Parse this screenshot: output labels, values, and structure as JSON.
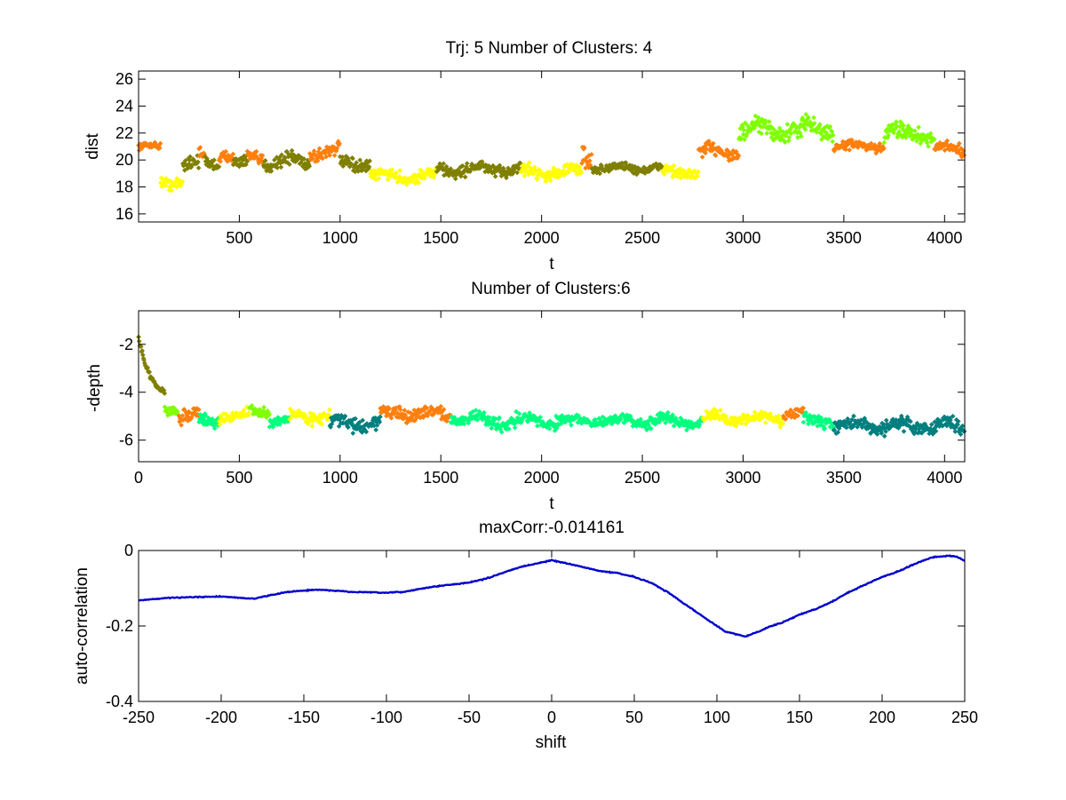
{
  "colors": {
    "orange": "#ff7f0e",
    "olive": "#7f7f00",
    "yellow": "#ffff00",
    "lime": "#7fff00",
    "teal": "#007f7f",
    "mint": "#00ff7f",
    "line": "#0000cc"
  },
  "chart_data": [
    {
      "type": "scatter",
      "title": "Trj: 5 Number of Clusters: 4",
      "xlabel": "t",
      "ylabel": "dist",
      "xlim": [
        0,
        4100
      ],
      "ylim": [
        15.4,
        26.6
      ],
      "xticks": [
        500,
        1000,
        1500,
        2000,
        2500,
        3000,
        3500,
        4000
      ],
      "yticks": [
        16,
        18,
        20,
        22,
        24,
        26
      ],
      "clusters": [
        {
          "name": "cluster 1",
          "color": "#ff7f0e"
        },
        {
          "name": "cluster 2",
          "color": "#7f7f00"
        },
        {
          "name": "cluster 3",
          "color": "#ffff00"
        },
        {
          "name": "cluster 4",
          "color": "#7fff00"
        }
      ],
      "segments": [
        {
          "t": [
            0,
            110
          ],
          "cluster": 0,
          "base": 21.0,
          "noise": 0.2
        },
        {
          "t": [
            110,
            220
          ],
          "cluster": 2,
          "base": 18.4,
          "noise": 0.4
        },
        {
          "t": [
            220,
            300
          ],
          "cluster": 1,
          "base": 19.7,
          "noise": 0.5
        },
        {
          "t": [
            300,
            330
          ],
          "cluster": 0,
          "base": 20.2,
          "noise": 0.4
        },
        {
          "t": [
            330,
            400
          ],
          "cluster": 1,
          "base": 19.8,
          "noise": 0.4
        },
        {
          "t": [
            400,
            470
          ],
          "cluster": 0,
          "base": 20.4,
          "noise": 0.4
        },
        {
          "t": [
            470,
            540
          ],
          "cluster": 1,
          "base": 19.7,
          "noise": 0.4
        },
        {
          "t": [
            540,
            620
          ],
          "cluster": 0,
          "base": 20.1,
          "noise": 0.4
        },
        {
          "t": [
            620,
            850
          ],
          "cluster": 1,
          "base": 19.9,
          "noise": 0.5
        },
        {
          "t": [
            850,
            1000
          ],
          "cluster": 0,
          "base": 20.6,
          "noise": 0.5
        },
        {
          "t": [
            1000,
            1150
          ],
          "cluster": 1,
          "base": 19.7,
          "noise": 0.4
        },
        {
          "t": [
            1150,
            1480
          ],
          "cluster": 2,
          "base": 18.8,
          "noise": 0.4
        },
        {
          "t": [
            1480,
            1900
          ],
          "cluster": 1,
          "base": 19.3,
          "noise": 0.4
        },
        {
          "t": [
            1900,
            2200
          ],
          "cluster": 2,
          "base": 19.1,
          "noise": 0.4
        },
        {
          "t": [
            2200,
            2250
          ],
          "cluster": 0,
          "base": 20.3,
          "noise": 0.8
        },
        {
          "t": [
            2250,
            2600
          ],
          "cluster": 1,
          "base": 19.4,
          "noise": 0.3
        },
        {
          "t": [
            2600,
            2780
          ],
          "cluster": 2,
          "base": 19.1,
          "noise": 0.4
        },
        {
          "t": [
            2780,
            2980
          ],
          "cluster": 0,
          "base": 20.6,
          "noise": 0.5
        },
        {
          "t": [
            2980,
            3300
          ],
          "cluster": 3,
          "base": 22.2,
          "noise": 0.6
        },
        {
          "t": [
            3300,
            3450
          ],
          "cluster": 3,
          "base": 22.3,
          "noise": 0.6
        },
        {
          "t": [
            3450,
            3700
          ],
          "cluster": 0,
          "base": 21.0,
          "noise": 0.3
        },
        {
          "t": [
            3700,
            3950
          ],
          "cluster": 3,
          "base": 22.0,
          "noise": 0.6
        },
        {
          "t": [
            3950,
            4100
          ],
          "cluster": 0,
          "base": 20.8,
          "noise": 0.4
        }
      ]
    },
    {
      "type": "scatter",
      "title": "Number of Clusters:6",
      "xlabel": "t",
      "ylabel": "-depth",
      "xlim": [
        0,
        4100
      ],
      "ylim": [
        -6.9,
        -0.6
      ],
      "xticks": [
        0,
        500,
        1000,
        1500,
        2000,
        2500,
        3000,
        3500,
        4000
      ],
      "yticks": [
        -2,
        -4,
        -6
      ],
      "clusters": [
        {
          "name": "cluster 1",
          "color": "#7f7f00"
        },
        {
          "name": "cluster 2",
          "color": "#7fff00"
        },
        {
          "name": "cluster 3",
          "color": "#ff7f0e"
        },
        {
          "name": "cluster 4",
          "color": "#ffff00"
        },
        {
          "name": "cluster 5",
          "color": "#00ff7f"
        },
        {
          "name": "cluster 6",
          "color": "#007f7f"
        }
      ],
      "segments": [
        {
          "t": [
            0,
            130
          ],
          "cluster": 0,
          "base": -2.0,
          "noise": 0.2,
          "decay": true
        },
        {
          "t": [
            130,
            200
          ],
          "cluster": 1,
          "base": -4.7,
          "noise": 0.2
        },
        {
          "t": [
            200,
            300
          ],
          "cluster": 2,
          "base": -5.0,
          "noise": 0.25
        },
        {
          "t": [
            300,
            400
          ],
          "cluster": 4,
          "base": -5.2,
          "noise": 0.2
        },
        {
          "t": [
            400,
            550
          ],
          "cluster": 3,
          "base": -5.0,
          "noise": 0.2
        },
        {
          "t": [
            550,
            650
          ],
          "cluster": 1,
          "base": -4.8,
          "noise": 0.2
        },
        {
          "t": [
            650,
            750
          ],
          "cluster": 4,
          "base": -5.2,
          "noise": 0.2
        },
        {
          "t": [
            750,
            950
          ],
          "cluster": 3,
          "base": -5.0,
          "noise": 0.2
        },
        {
          "t": [
            950,
            1200
          ],
          "cluster": 5,
          "base": -5.3,
          "noise": 0.25
        },
        {
          "t": [
            1200,
            1550
          ],
          "cluster": 2,
          "base": -4.9,
          "noise": 0.25
        },
        {
          "t": [
            1550,
            1700
          ],
          "cluster": 4,
          "base": -5.1,
          "noise": 0.2
        },
        {
          "t": [
            1700,
            2150
          ],
          "cluster": 4,
          "base": -5.2,
          "noise": 0.25
        },
        {
          "t": [
            2150,
            2450
          ],
          "cluster": 4,
          "base": -5.2,
          "noise": 0.2
        },
        {
          "t": [
            2450,
            2800
          ],
          "cluster": 4,
          "base": -5.2,
          "noise": 0.2
        },
        {
          "t": [
            2800,
            3200
          ],
          "cluster": 3,
          "base": -5.1,
          "noise": 0.2
        },
        {
          "t": [
            3200,
            3300
          ],
          "cluster": 2,
          "base": -4.9,
          "noise": 0.2
        },
        {
          "t": [
            3300,
            3450
          ],
          "cluster": 4,
          "base": -5.2,
          "noise": 0.2
        },
        {
          "t": [
            3450,
            4100
          ],
          "cluster": 5,
          "base": -5.4,
          "noise": 0.25
        }
      ]
    },
    {
      "type": "line",
      "title": "maxCorr:-0.014161",
      "xlabel": "shift",
      "ylabel": "auto-correlation",
      "xlim": [
        -250,
        250
      ],
      "ylim": [
        -0.4,
        0
      ],
      "xticks": [
        -250,
        -200,
        -150,
        -100,
        -50,
        0,
        50,
        100,
        150,
        200,
        250
      ],
      "yticks": [
        0,
        -0.2,
        -0.4
      ],
      "series": [
        {
          "name": "auto-correlation",
          "x": [
            -250,
            -230,
            -200,
            -180,
            -170,
            -160,
            -150,
            -140,
            -120,
            -100,
            -90,
            -80,
            -70,
            -60,
            -50,
            -40,
            -30,
            -20,
            -10,
            0,
            10,
            20,
            30,
            40,
            50,
            60,
            70,
            80,
            90,
            100,
            105,
            110,
            117,
            125,
            130,
            140,
            150,
            160,
            170,
            180,
            190,
            200,
            210,
            220,
            230,
            240,
            245,
            250
          ],
          "y": [
            -0.132,
            -0.125,
            -0.122,
            -0.128,
            -0.118,
            -0.11,
            -0.106,
            -0.104,
            -0.11,
            -0.112,
            -0.11,
            -0.102,
            -0.095,
            -0.09,
            -0.085,
            -0.075,
            -0.06,
            -0.045,
            -0.035,
            -0.026,
            -0.035,
            -0.045,
            -0.055,
            -0.06,
            -0.07,
            -0.085,
            -0.11,
            -0.14,
            -0.17,
            -0.2,
            -0.215,
            -0.22,
            -0.228,
            -0.215,
            -0.205,
            -0.19,
            -0.17,
            -0.155,
            -0.135,
            -0.11,
            -0.09,
            -0.07,
            -0.055,
            -0.035,
            -0.018,
            -0.014,
            -0.016,
            -0.028
          ]
        }
      ]
    }
  ]
}
